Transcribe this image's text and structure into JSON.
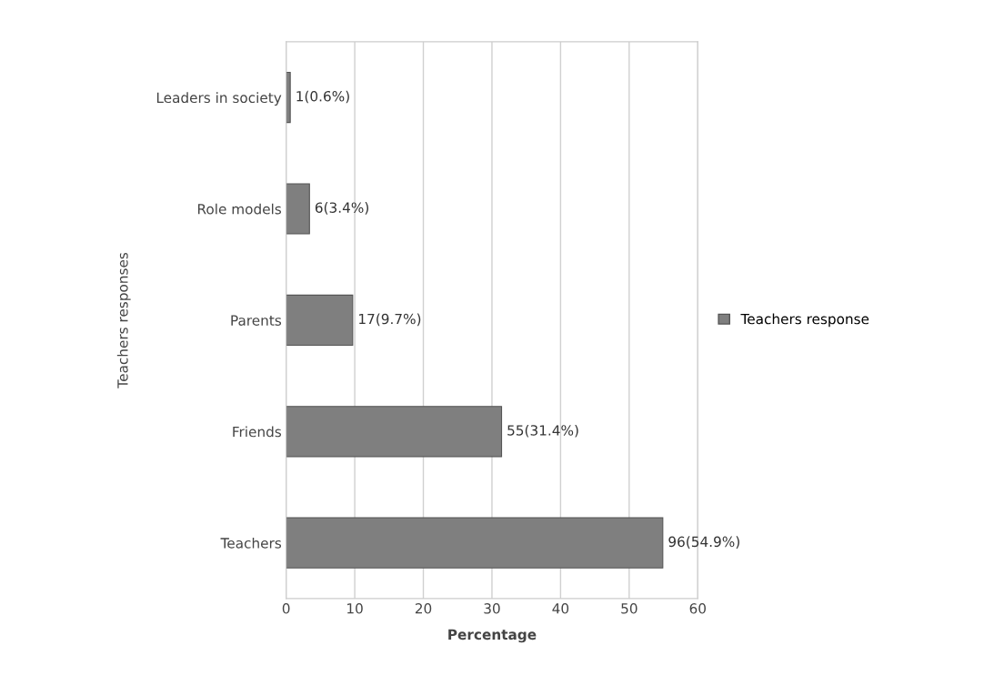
{
  "chart_data": {
    "type": "bar",
    "orientation": "horizontal",
    "xlabel": "Percentage",
    "ylabel": "Teachers responses",
    "categories": [
      "Leaders in society",
      "Role models",
      "Parents",
      "Friends",
      "Teachers"
    ],
    "series": [
      {
        "name": "Teachers response",
        "color": "#7f7f7f",
        "values": [
          0.6,
          3.4,
          9.7,
          31.4,
          54.9
        ],
        "value_labels": [
          "1(0.6%)",
          "6(3.4%)",
          "17(9.7%)",
          "55(31.4%)",
          "96(54.9%)"
        ]
      }
    ],
    "xlim": [
      0,
      60
    ],
    "xticks": [
      0,
      10,
      20,
      30,
      40,
      50,
      60
    ],
    "grid": "x",
    "legend": "right"
  }
}
